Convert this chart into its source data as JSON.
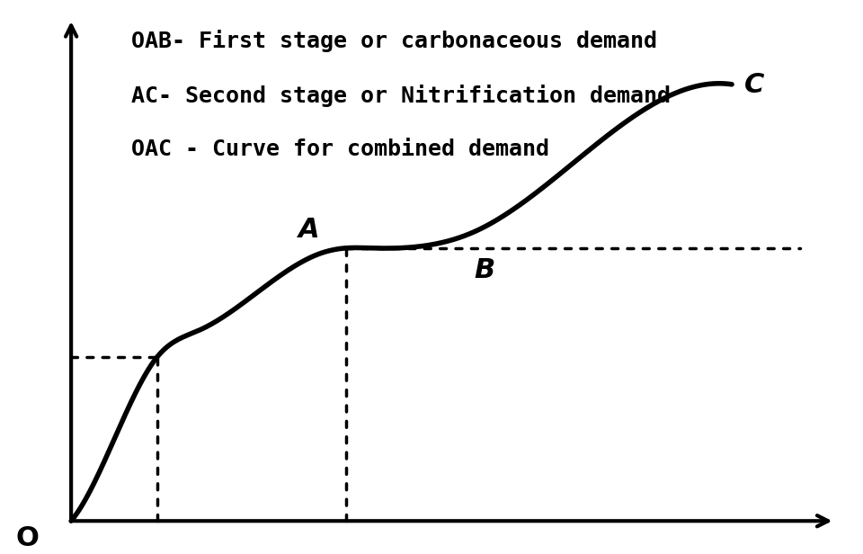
{
  "background_color": "#ffffff",
  "title_lines": [
    "OAB- First stage or carbonaceous demand",
    "AC- Second stage or Nitrification demand",
    "OAC - Curve for combined demand"
  ],
  "label_O": "O",
  "label_A": "A",
  "label_B": "B",
  "label_C": "C",
  "curve_color": "#000000",
  "curve_lw": 4.0,
  "dashed_color": "#000000",
  "dashed_lw": 2.5,
  "axis_color": "#000000",
  "axis_lw": 3.0,
  "text_fontsize": 18,
  "label_fontsize": 22,
  "xlim": [
    0,
    10
  ],
  "ylim": [
    0,
    10
  ],
  "ox": 0.8,
  "oy": 0.5,
  "x_infl": 1.8,
  "y_infl": 3.5,
  "x_A": 4.0,
  "y_A": 5.5,
  "x_C": 8.5,
  "y_C": 8.5
}
